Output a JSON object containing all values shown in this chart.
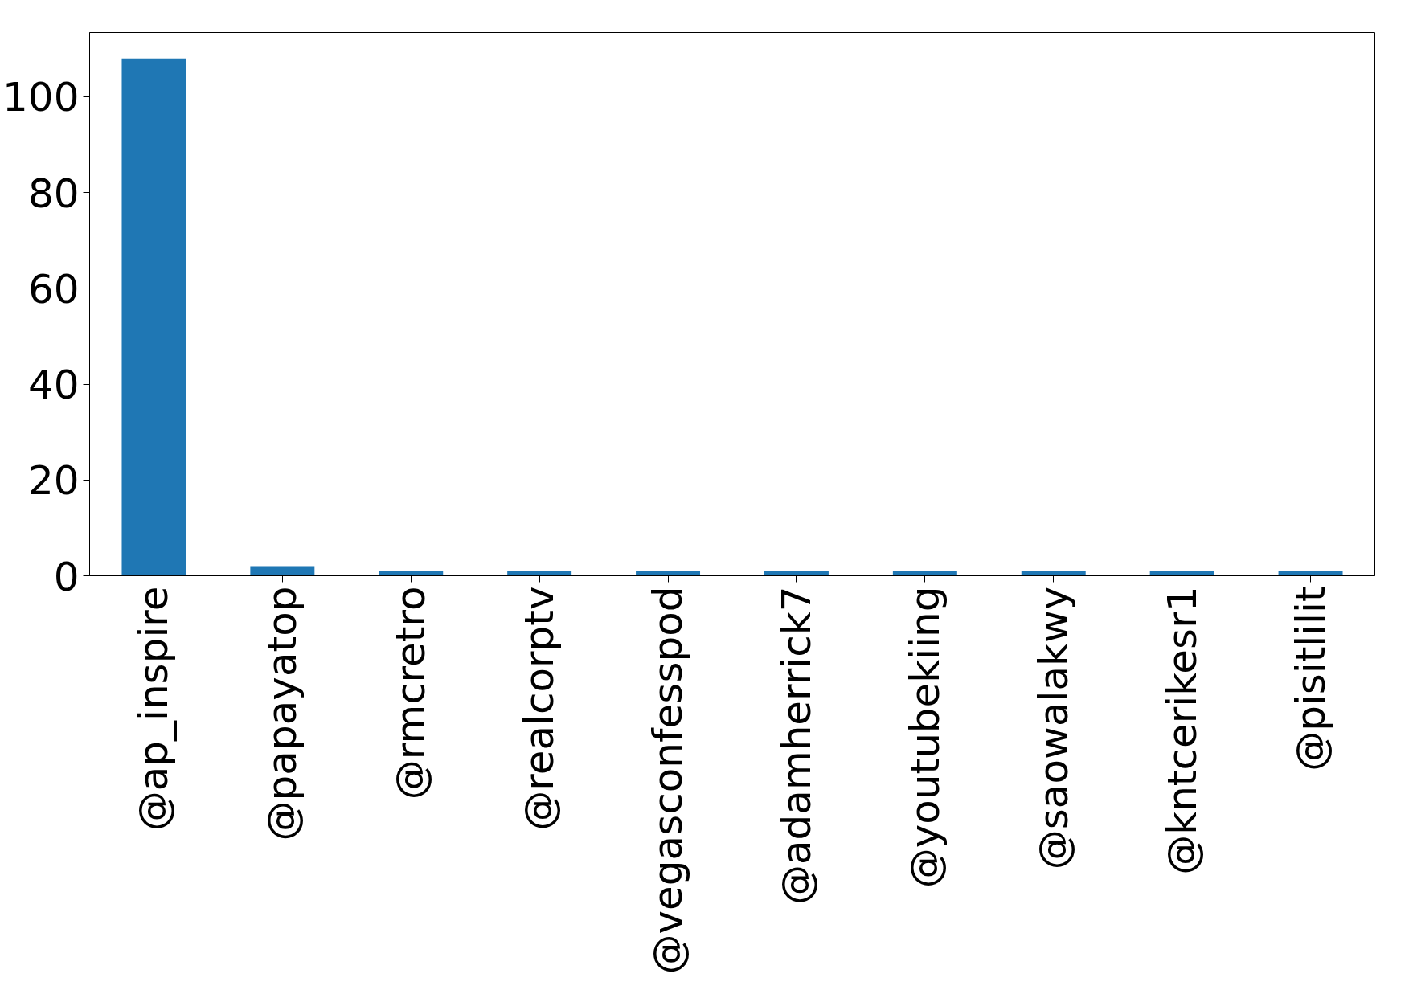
{
  "chart_data": {
    "type": "bar",
    "categories": [
      "@ap_inspire",
      "@papayatop",
      "@rmcretro",
      "@realcorptv",
      "@vegasconfesspod",
      "@adamherrick7",
      "@youtubekiing",
      "@saowalakwy",
      "@kntcerikesr1",
      "@pisitlilit"
    ],
    "values": [
      108,
      2,
      1,
      1,
      1,
      1,
      1,
      1,
      1,
      1
    ],
    "color": "#1f77b4",
    "ylim": [
      0,
      113.4
    ],
    "yticks": [
      0,
      20,
      40,
      60,
      80,
      100
    ],
    "grid": false
  }
}
